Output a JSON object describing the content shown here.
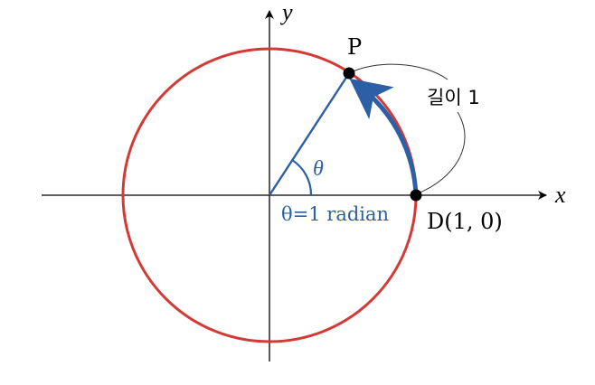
{
  "axes": {
    "x_label": "x",
    "y_label": "y"
  },
  "points": {
    "p_label": "P",
    "d_label": "D(1, 0)"
  },
  "angle": {
    "symbol": "θ",
    "equation": "θ=1 radian"
  },
  "arc": {
    "length_label": "길이 1"
  },
  "colors": {
    "circle": "#d33a36",
    "accent": "#2c5fa5",
    "axis": "#000000",
    "callout": "#333333"
  }
}
